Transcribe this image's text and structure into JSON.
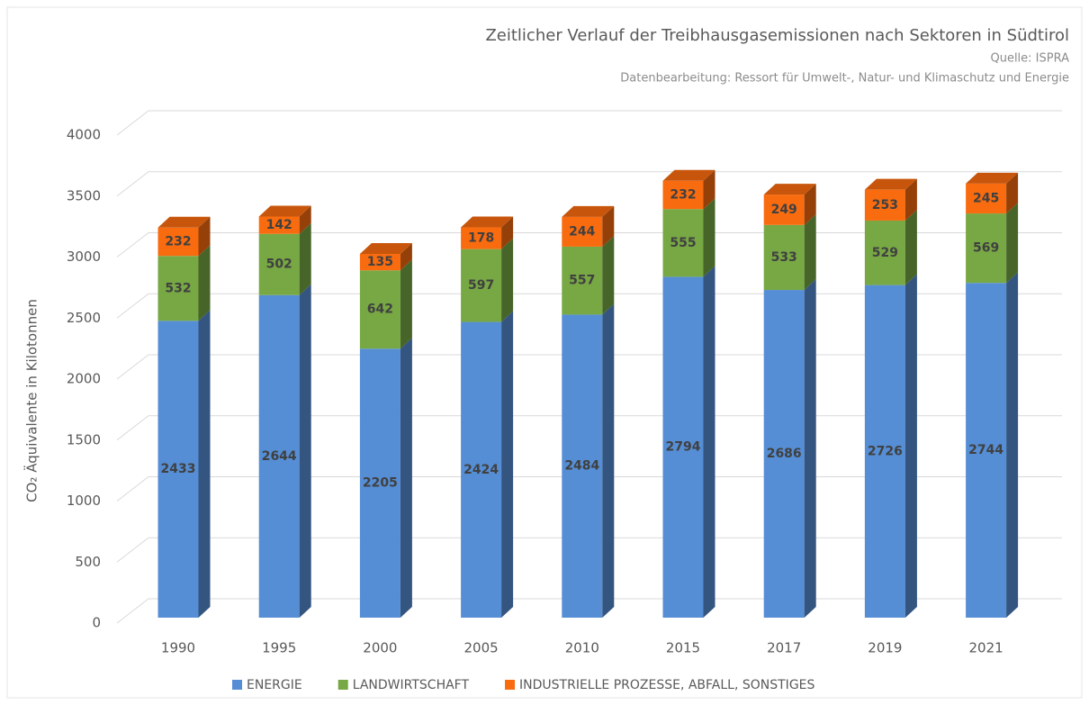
{
  "chart_data": {
    "type": "bar3d_stacked",
    "title": "Zeitlicher Verlauf der Treibhausgasemissionen nach Sektoren in Südtirol",
    "subtitle": [
      "Quelle: ISPRA",
      "Datenbearbeitung: Ressort für Umwelt-, Natur- und Klimaschutz und Energie"
    ],
    "y_label": "CO₂ Äquivalente in Kilotonnen",
    "categories": [
      "1990",
      "1995",
      "2000",
      "2005",
      "2010",
      "2015",
      "2017",
      "2019",
      "2021"
    ],
    "series": [
      {
        "name": "ENERGIE",
        "color": "#558ed5",
        "values": [
          2433,
          2644,
          2205,
          2424,
          2484,
          2794,
          2686,
          2726,
          2744
        ]
      },
      {
        "name": "LANDWIRTSCHAFT",
        "color": "#77a844",
        "values": [
          532,
          502,
          642,
          597,
          557,
          555,
          533,
          529,
          569
        ]
      },
      {
        "name": "INDUSTRIELLE PROZESSE, ABFALL, SONSTIGES",
        "color": "#f96b0f",
        "values": [
          232,
          142,
          135,
          178,
          244,
          232,
          249,
          253,
          245
        ]
      }
    ],
    "ylim": [
      0,
      4000
    ],
    "yticks": [
      0,
      500,
      1000,
      1500,
      2000,
      2500,
      3000,
      3500,
      4000
    ],
    "grid": true,
    "legend": "bottom"
  }
}
